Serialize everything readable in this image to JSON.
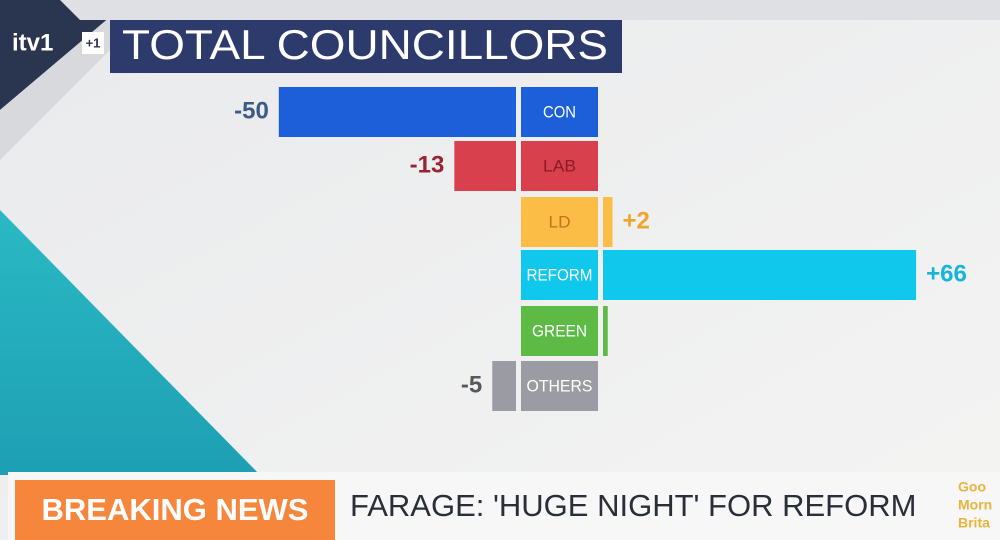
{
  "channel": {
    "name": "itv1",
    "badge": "+1"
  },
  "chart_data": {
    "type": "bar",
    "orientation": "diverging-horizontal",
    "title": "TOTAL COUNCILLORS",
    "categories": [
      "CON",
      "LAB",
      "LD",
      "REFORM",
      "GREEN",
      "OTHERS"
    ],
    "values": [
      -50,
      -13,
      2,
      66,
      1,
      -5
    ],
    "value_labels": [
      "-50",
      "-13",
      "+2",
      "+66",
      null,
      "-5"
    ],
    "colors": [
      "#1c5fd8",
      "#d9404d",
      "#fbbd45",
      "#10c7ec",
      "#5cba45",
      "#9b9ca3"
    ],
    "xlim": [
      -55,
      70
    ]
  },
  "ticker": {
    "label": "BREAKING NEWS",
    "headline": "FARAGE: 'HUGE NIGHT' FOR REFORM"
  },
  "programme_logo": [
    "Goo",
    "Morn",
    "Brita"
  ]
}
